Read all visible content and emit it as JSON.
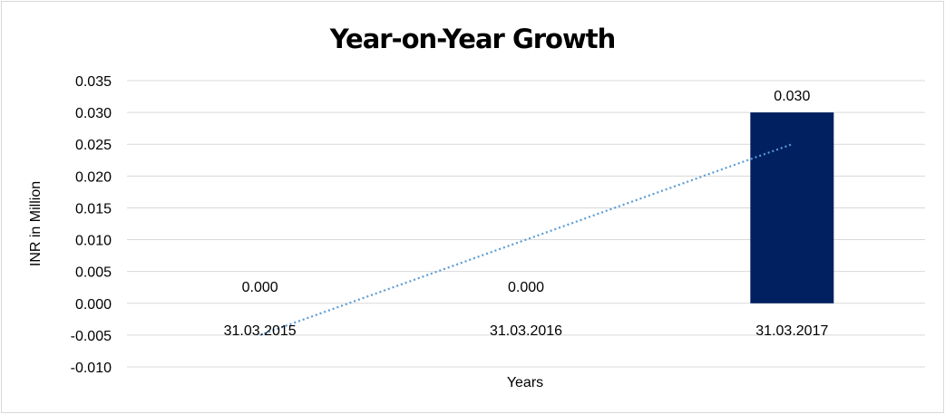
{
  "chart_data": {
    "type": "bar",
    "title": "Year-on-Year Growth",
    "xlabel": "Years",
    "ylabel": "INR in Million",
    "categories": [
      "31.03.2015",
      "31.03.2016",
      "31.03.2017"
    ],
    "values": [
      0.0,
      0.0,
      0.03
    ],
    "data_labels": [
      "0.000",
      "0.000",
      "0.030"
    ],
    "ylim": [
      -0.01,
      0.035
    ],
    "yticks": [
      "0.035",
      "0.030",
      "0.025",
      "0.020",
      "0.015",
      "0.010",
      "0.005",
      "0.000",
      "-0.005",
      "-0.010"
    ],
    "grid": true,
    "legend": "none",
    "trendline": {
      "type": "linear",
      "style": "dotted",
      "color": "#5b9bd5",
      "values": [
        -0.005,
        0.01,
        0.025
      ]
    },
    "bar_color": "#002060"
  }
}
